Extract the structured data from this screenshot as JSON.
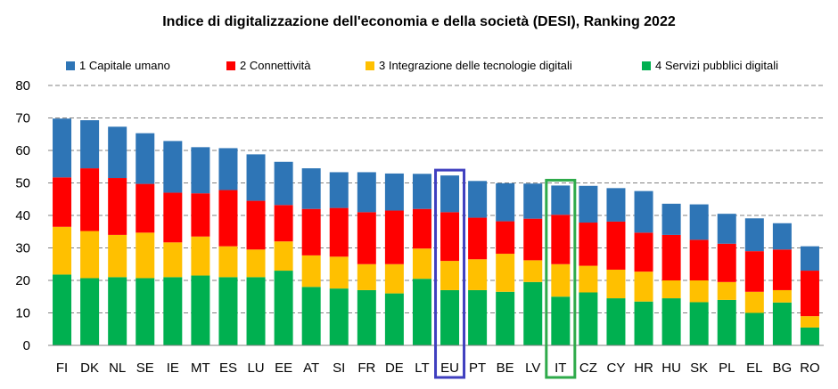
{
  "chart_data": {
    "type": "bar",
    "stacked": true,
    "title": "Indice di digitalizzazione dell'economia e della società (DESI), Ranking 2022",
    "xlabel": "",
    "ylabel": "",
    "ylim": [
      0,
      80
    ],
    "yticks": [
      0,
      10,
      20,
      30,
      40,
      50,
      60,
      70,
      80
    ],
    "grid": true,
    "legend_position": "top",
    "categories": [
      "FI",
      "DK",
      "NL",
      "SE",
      "IE",
      "MT",
      "ES",
      "LU",
      "EE",
      "AT",
      "SI",
      "FR",
      "DE",
      "LT",
      "EU",
      "PT",
      "BE",
      "LV",
      "IT",
      "CZ",
      "CY",
      "HR",
      "HU",
      "SK",
      "PL",
      "EL",
      "BG",
      "RO"
    ],
    "highlighted": [
      {
        "category": "EU",
        "color": "#3f3fbf"
      },
      {
        "category": "IT",
        "color": "#2eaa4a"
      }
    ],
    "series": [
      {
        "name": "4 Servizi pubblici digitali",
        "color": "#00b050",
        "values": [
          21.8,
          20.7,
          21.0,
          20.7,
          21.0,
          21.5,
          21.0,
          21.0,
          23.0,
          18.0,
          17.5,
          17.0,
          16.0,
          20.5,
          17.0,
          17.0,
          16.5,
          19.5,
          15.0,
          16.3,
          14.5,
          13.5,
          14.5,
          13.3,
          14.0,
          10.0,
          13.2,
          5.5
        ]
      },
      {
        "name": "3 Integrazione delle tecnologie digitali",
        "color": "#ffc000",
        "values": [
          14.7,
          14.5,
          13.0,
          14.0,
          10.7,
          12.0,
          9.5,
          8.5,
          9.0,
          9.7,
          9.8,
          8.0,
          9.0,
          9.3,
          9.0,
          9.5,
          11.7,
          6.7,
          10.0,
          8.2,
          8.8,
          9.2,
          5.5,
          6.7,
          5.5,
          6.5,
          3.8,
          3.5
        ]
      },
      {
        "name": "2 Connettività",
        "color": "#ff0000",
        "values": [
          15.2,
          19.3,
          17.5,
          15.0,
          15.3,
          13.3,
          17.3,
          15.0,
          11.2,
          14.3,
          15.0,
          16.0,
          16.5,
          12.2,
          15.0,
          12.8,
          10.0,
          12.8,
          15.2,
          13.3,
          14.8,
          12.0,
          14.0,
          12.5,
          11.8,
          12.5,
          12.5,
          14.0
        ]
      },
      {
        "name": "1 Capitale umano",
        "color": "#2e75b6",
        "values": [
          18.1,
          14.8,
          15.8,
          15.6,
          15.9,
          14.2,
          12.9,
          14.3,
          13.3,
          12.5,
          11.0,
          12.3,
          11.4,
          10.8,
          11.3,
          11.3,
          11.7,
          10.8,
          9.0,
          11.3,
          10.3,
          12.8,
          9.6,
          10.9,
          9.2,
          10.1,
          8.1,
          7.5
        ]
      }
    ]
  }
}
